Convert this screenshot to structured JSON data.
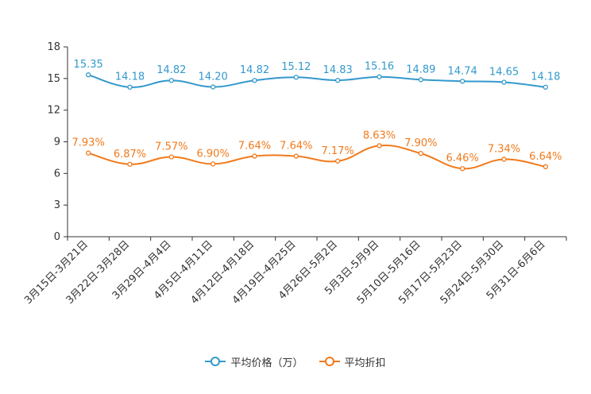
{
  "chart_data": {
    "type": "line",
    "categories": [
      "3月15日-3月21日",
      "3月22日-3月28日",
      "3月29日-4月4日",
      "4月5日-4月11日",
      "4月12日-4月18日",
      "4月19日-4月25日",
      "4月26日-5月2日",
      "5月3日-5月9日",
      "5月10日-5月16日",
      "5月17日-5月23日",
      "5月24日-5月30日",
      "5月31日-6月6日"
    ],
    "series": [
      {
        "name": "平均价格（万）",
        "color": "#3399CC",
        "values": [
          15.35,
          14.18,
          14.82,
          14.2,
          14.82,
          15.12,
          14.83,
          15.16,
          14.89,
          14.74,
          14.65,
          14.18
        ],
        "labels": [
          "15.35",
          "14.18",
          "14.82",
          "14.20",
          "14.82",
          "15.12",
          "14.83",
          "15.16",
          "14.89",
          "14.74",
          "14.65",
          "14.18"
        ]
      },
      {
        "name": "平均折扣",
        "color": "#F07A1C",
        "values": [
          7.93,
          6.87,
          7.57,
          6.9,
          7.64,
          7.64,
          7.17,
          8.63,
          7.9,
          6.46,
          7.34,
          6.64
        ],
        "labels": [
          "7.93%",
          "6.87%",
          "7.57%",
          "6.90%",
          "7.64%",
          "7.64%",
          "7.17%",
          "8.63%",
          "7.90%",
          "6.46%",
          "7.34%",
          "6.64%"
        ]
      }
    ],
    "ylim": [
      0,
      18
    ],
    "yticks": [
      "0",
      "3",
      "6",
      "9",
      "12",
      "15",
      "18"
    ],
    "title": "",
    "xlabel": "",
    "ylabel": "",
    "legend_position": "bottom-center"
  }
}
